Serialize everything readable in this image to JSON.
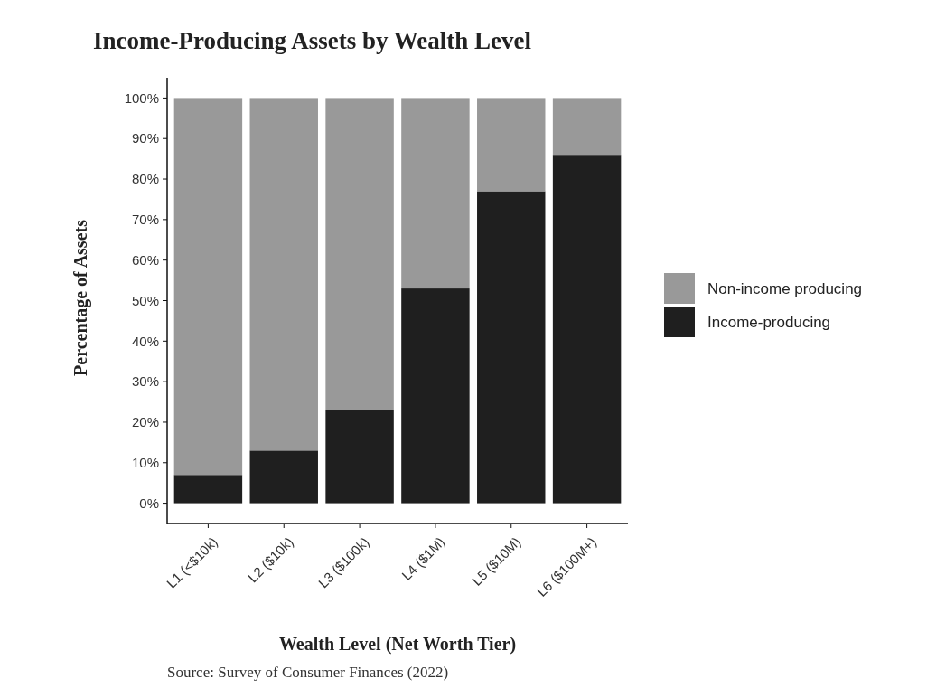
{
  "chart_data": {
    "type": "bar",
    "stacked": true,
    "title": "Income-Producing Assets by Wealth Level",
    "xlabel": "Wealth Level (Net Worth Tier)",
    "ylabel": "Percentage of Assets",
    "categories": [
      "L1 (<$10k)",
      "L2 ($10k)",
      "L3 ($100k)",
      "L4 ($1M)",
      "L5 ($10M)",
      "L6 ($100M+)"
    ],
    "series": [
      {
        "name": "Income-producing",
        "color": "#1f1f1f",
        "values": [
          7,
          13,
          23,
          53,
          77,
          86
        ]
      },
      {
        "name": "Non-income producing",
        "color": "#999999",
        "values": [
          93,
          87,
          77,
          47,
          23,
          14
        ]
      }
    ],
    "ylim": [
      -5,
      105
    ],
    "yticks": [
      {
        "value": 0,
        "label": "0%"
      },
      {
        "value": 10,
        "label": "10%"
      },
      {
        "value": 20,
        "label": "20%"
      },
      {
        "value": 30,
        "label": "30%"
      },
      {
        "value": 40,
        "label": "40%"
      },
      {
        "value": 50,
        "label": "50%"
      },
      {
        "value": 60,
        "label": "60%"
      },
      {
        "value": 70,
        "label": "70%"
      },
      {
        "value": 80,
        "label": "80%"
      },
      {
        "value": 90,
        "label": "90%"
      },
      {
        "value": 100,
        "label": "100%"
      }
    ],
    "grid": false,
    "legend": "right",
    "annotations": [
      "Source: Survey of Consumer Finances (2022)"
    ]
  }
}
